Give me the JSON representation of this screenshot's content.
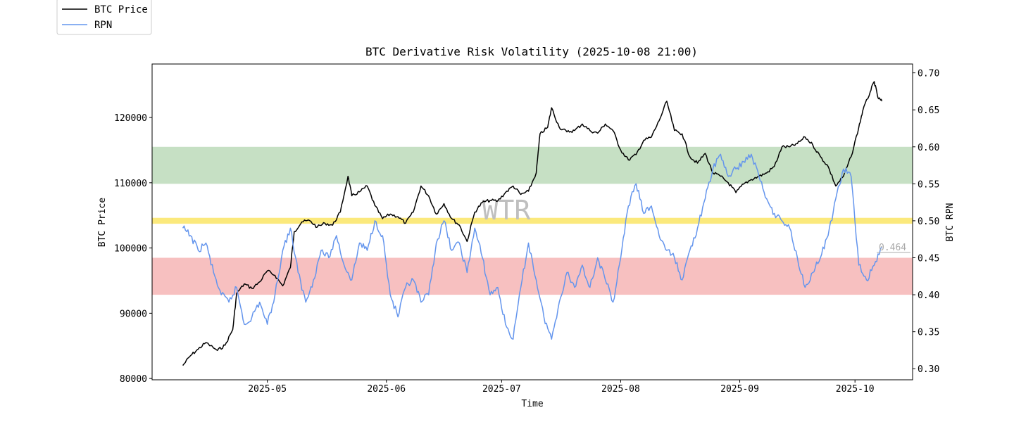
{
  "chart_data": {
    "type": "line",
    "title": "BTC Derivative Risk Volatility (2025-10-08 21:00)",
    "xlabel": "Time",
    "ylabel_left": "BTC Price",
    "ylabel_right": "BTC RPN",
    "watermark": "WTR",
    "x_ticks": [
      "2025-05",
      "2025-06",
      "2025-07",
      "2025-08",
      "2025-09",
      "2025-10"
    ],
    "x_range": [
      "2025-04-01",
      "2025-10-16"
    ],
    "y_left": {
      "range": [
        79800,
        128200
      ],
      "ticks": [
        80000,
        90000,
        100000,
        110000,
        120000
      ]
    },
    "y_right": {
      "range": [
        0.285,
        0.712
      ],
      "ticks": [
        "0.30",
        "0.35",
        "0.40",
        "0.45",
        "0.50",
        "0.55",
        "0.60",
        "0.65",
        "0.70"
      ]
    },
    "bands": [
      {
        "from": 0.55,
        "to": 0.6,
        "color": "#c6e0c4"
      },
      {
        "from": 0.496,
        "to": 0.504,
        "color": "#fbe97c"
      },
      {
        "from": 0.4,
        "to": 0.45,
        "color": "#f7c0c0"
      }
    ],
    "last_value_label": "0.464",
    "last_value": 0.464,
    "legend": {
      "placement": "top-left",
      "entries": [
        "BTC Price",
        "RPN"
      ]
    },
    "series": [
      {
        "name": "BTC Price",
        "axis": "left",
        "color": "#000000",
        "points": [
          [
            "2025-04-09",
            82000
          ],
          [
            "2025-04-11",
            83500
          ],
          [
            "2025-04-13",
            84500
          ],
          [
            "2025-04-15",
            85500
          ],
          [
            "2025-04-18",
            84300
          ],
          [
            "2025-04-20",
            85100
          ],
          [
            "2025-04-22",
            87500
          ],
          [
            "2025-04-23",
            93000
          ],
          [
            "2025-04-25",
            94500
          ],
          [
            "2025-04-27",
            93800
          ],
          [
            "2025-04-29",
            94800
          ],
          [
            "2025-05-01",
            96500
          ],
          [
            "2025-05-03",
            95800
          ],
          [
            "2025-05-05",
            94200
          ],
          [
            "2025-05-07",
            97000
          ],
          [
            "2025-05-08",
            102500
          ],
          [
            "2025-05-10",
            104000
          ],
          [
            "2025-05-12",
            104200
          ],
          [
            "2025-05-14",
            103200
          ],
          [
            "2025-05-16",
            103800
          ],
          [
            "2025-05-18",
            103500
          ],
          [
            "2025-05-20",
            105500
          ],
          [
            "2025-05-22",
            111000
          ],
          [
            "2025-05-23",
            108000
          ],
          [
            "2025-05-25",
            108600
          ],
          [
            "2025-05-27",
            109500
          ],
          [
            "2025-05-29",
            106500
          ],
          [
            "2025-05-31",
            104500
          ],
          [
            "2025-06-02",
            105200
          ],
          [
            "2025-06-04",
            104800
          ],
          [
            "2025-06-06",
            103800
          ],
          [
            "2025-06-08",
            105500
          ],
          [
            "2025-06-10",
            109500
          ],
          [
            "2025-06-12",
            108000
          ],
          [
            "2025-06-14",
            105200
          ],
          [
            "2025-06-16",
            106800
          ],
          [
            "2025-06-18",
            104500
          ],
          [
            "2025-06-20",
            103500
          ],
          [
            "2025-06-22",
            101000
          ],
          [
            "2025-06-24",
            105500
          ],
          [
            "2025-06-26",
            107000
          ],
          [
            "2025-06-28",
            107300
          ],
          [
            "2025-06-30",
            107200
          ],
          [
            "2025-07-02",
            108500
          ],
          [
            "2025-07-04",
            109500
          ],
          [
            "2025-07-06",
            108200
          ],
          [
            "2025-07-08",
            108700
          ],
          [
            "2025-07-10",
            111500
          ],
          [
            "2025-07-11",
            117500
          ],
          [
            "2025-07-13",
            118500
          ],
          [
            "2025-07-14",
            121500
          ],
          [
            "2025-07-16",
            118500
          ],
          [
            "2025-07-18",
            117800
          ],
          [
            "2025-07-20",
            118000
          ],
          [
            "2025-07-22",
            119000
          ],
          [
            "2025-07-24",
            118000
          ],
          [
            "2025-07-26",
            117600
          ],
          [
            "2025-07-28",
            119000
          ],
          [
            "2025-07-30",
            118000
          ],
          [
            "2025-08-01",
            115000
          ],
          [
            "2025-08-03",
            113500
          ],
          [
            "2025-08-05",
            114300
          ],
          [
            "2025-08-07",
            116500
          ],
          [
            "2025-08-09",
            117000
          ],
          [
            "2025-08-11",
            119500
          ],
          [
            "2025-08-13",
            122500
          ],
          [
            "2025-08-15",
            118000
          ],
          [
            "2025-08-17",
            117500
          ],
          [
            "2025-08-19",
            114000
          ],
          [
            "2025-08-21",
            113000
          ],
          [
            "2025-08-23",
            114500
          ],
          [
            "2025-08-25",
            111500
          ],
          [
            "2025-08-27",
            111000
          ],
          [
            "2025-08-29",
            110000
          ],
          [
            "2025-08-31",
            108500
          ],
          [
            "2025-09-02",
            109800
          ],
          [
            "2025-09-04",
            110500
          ],
          [
            "2025-09-06",
            111000
          ],
          [
            "2025-09-08",
            111500
          ],
          [
            "2025-09-10",
            112500
          ],
          [
            "2025-09-12",
            115500
          ],
          [
            "2025-09-14",
            115500
          ],
          [
            "2025-09-16",
            116000
          ],
          [
            "2025-09-18",
            117000
          ],
          [
            "2025-09-20",
            115800
          ],
          [
            "2025-09-22",
            114000
          ],
          [
            "2025-09-24",
            112500
          ],
          [
            "2025-09-26",
            109500
          ],
          [
            "2025-09-28",
            111000
          ],
          [
            "2025-09-30",
            114000
          ],
          [
            "2025-10-02",
            118500
          ],
          [
            "2025-10-03",
            121000
          ],
          [
            "2025-10-05",
            124000
          ],
          [
            "2025-10-06",
            125500
          ],
          [
            "2025-10-07",
            123000
          ],
          [
            "2025-10-08",
            122500
          ]
        ]
      },
      {
        "name": "RPN",
        "axis": "right",
        "color": "#6495ED",
        "points": [
          [
            "2025-04-09",
            0.49
          ],
          [
            "2025-04-11",
            0.48
          ],
          [
            "2025-04-13",
            0.46
          ],
          [
            "2025-04-15",
            0.47
          ],
          [
            "2025-04-17",
            0.43
          ],
          [
            "2025-04-19",
            0.4
          ],
          [
            "2025-04-21",
            0.39
          ],
          [
            "2025-04-23",
            0.41
          ],
          [
            "2025-04-25",
            0.36
          ],
          [
            "2025-04-27",
            0.37
          ],
          [
            "2025-04-29",
            0.39
          ],
          [
            "2025-05-01",
            0.36
          ],
          [
            "2025-05-03",
            0.4
          ],
          [
            "2025-05-05",
            0.46
          ],
          [
            "2025-05-07",
            0.49
          ],
          [
            "2025-05-09",
            0.43
          ],
          [
            "2025-05-11",
            0.39
          ],
          [
            "2025-05-13",
            0.42
          ],
          [
            "2025-05-15",
            0.46
          ],
          [
            "2025-05-17",
            0.45
          ],
          [
            "2025-05-19",
            0.48
          ],
          [
            "2025-05-21",
            0.44
          ],
          [
            "2025-05-23",
            0.42
          ],
          [
            "2025-05-25",
            0.47
          ],
          [
            "2025-05-27",
            0.46
          ],
          [
            "2025-05-29",
            0.5
          ],
          [
            "2025-05-31",
            0.48
          ],
          [
            "2025-06-02",
            0.4
          ],
          [
            "2025-06-04",
            0.37
          ],
          [
            "2025-06-06",
            0.41
          ],
          [
            "2025-06-08",
            0.42
          ],
          [
            "2025-06-10",
            0.39
          ],
          [
            "2025-06-12",
            0.4
          ],
          [
            "2025-06-14",
            0.47
          ],
          [
            "2025-06-16",
            0.5
          ],
          [
            "2025-06-18",
            0.46
          ],
          [
            "2025-06-20",
            0.47
          ],
          [
            "2025-06-22",
            0.43
          ],
          [
            "2025-06-24",
            0.49
          ],
          [
            "2025-06-26",
            0.45
          ],
          [
            "2025-06-28",
            0.4
          ],
          [
            "2025-06-30",
            0.41
          ],
          [
            "2025-07-02",
            0.36
          ],
          [
            "2025-07-04",
            0.34
          ],
          [
            "2025-07-06",
            0.41
          ],
          [
            "2025-07-08",
            0.47
          ],
          [
            "2025-07-10",
            0.42
          ],
          [
            "2025-07-12",
            0.37
          ],
          [
            "2025-07-14",
            0.34
          ],
          [
            "2025-07-16",
            0.39
          ],
          [
            "2025-07-18",
            0.43
          ],
          [
            "2025-07-20",
            0.41
          ],
          [
            "2025-07-22",
            0.44
          ],
          [
            "2025-07-24",
            0.41
          ],
          [
            "2025-07-26",
            0.45
          ],
          [
            "2025-07-28",
            0.42
          ],
          [
            "2025-07-30",
            0.39
          ],
          [
            "2025-08-01",
            0.45
          ],
          [
            "2025-08-03",
            0.52
          ],
          [
            "2025-08-05",
            0.55
          ],
          [
            "2025-08-07",
            0.51
          ],
          [
            "2025-08-09",
            0.52
          ],
          [
            "2025-08-11",
            0.48
          ],
          [
            "2025-08-13",
            0.46
          ],
          [
            "2025-08-15",
            0.45
          ],
          [
            "2025-08-17",
            0.42
          ],
          [
            "2025-08-19",
            0.46
          ],
          [
            "2025-08-21",
            0.49
          ],
          [
            "2025-08-23",
            0.53
          ],
          [
            "2025-08-25",
            0.57
          ],
          [
            "2025-08-27",
            0.59
          ],
          [
            "2025-08-29",
            0.56
          ],
          [
            "2025-08-31",
            0.57
          ],
          [
            "2025-09-02",
            0.58
          ],
          [
            "2025-09-04",
            0.59
          ],
          [
            "2025-09-06",
            0.56
          ],
          [
            "2025-09-08",
            0.53
          ],
          [
            "2025-09-10",
            0.51
          ],
          [
            "2025-09-12",
            0.5
          ],
          [
            "2025-09-14",
            0.49
          ],
          [
            "2025-09-16",
            0.45
          ],
          [
            "2025-09-18",
            0.41
          ],
          [
            "2025-09-20",
            0.43
          ],
          [
            "2025-09-22",
            0.45
          ],
          [
            "2025-09-24",
            0.48
          ],
          [
            "2025-09-26",
            0.53
          ],
          [
            "2025-09-28",
            0.57
          ],
          [
            "2025-09-30",
            0.56
          ],
          [
            "2025-10-02",
            0.44
          ],
          [
            "2025-10-04",
            0.42
          ],
          [
            "2025-10-06",
            0.44
          ],
          [
            "2025-10-08",
            0.464
          ]
        ]
      }
    ]
  }
}
